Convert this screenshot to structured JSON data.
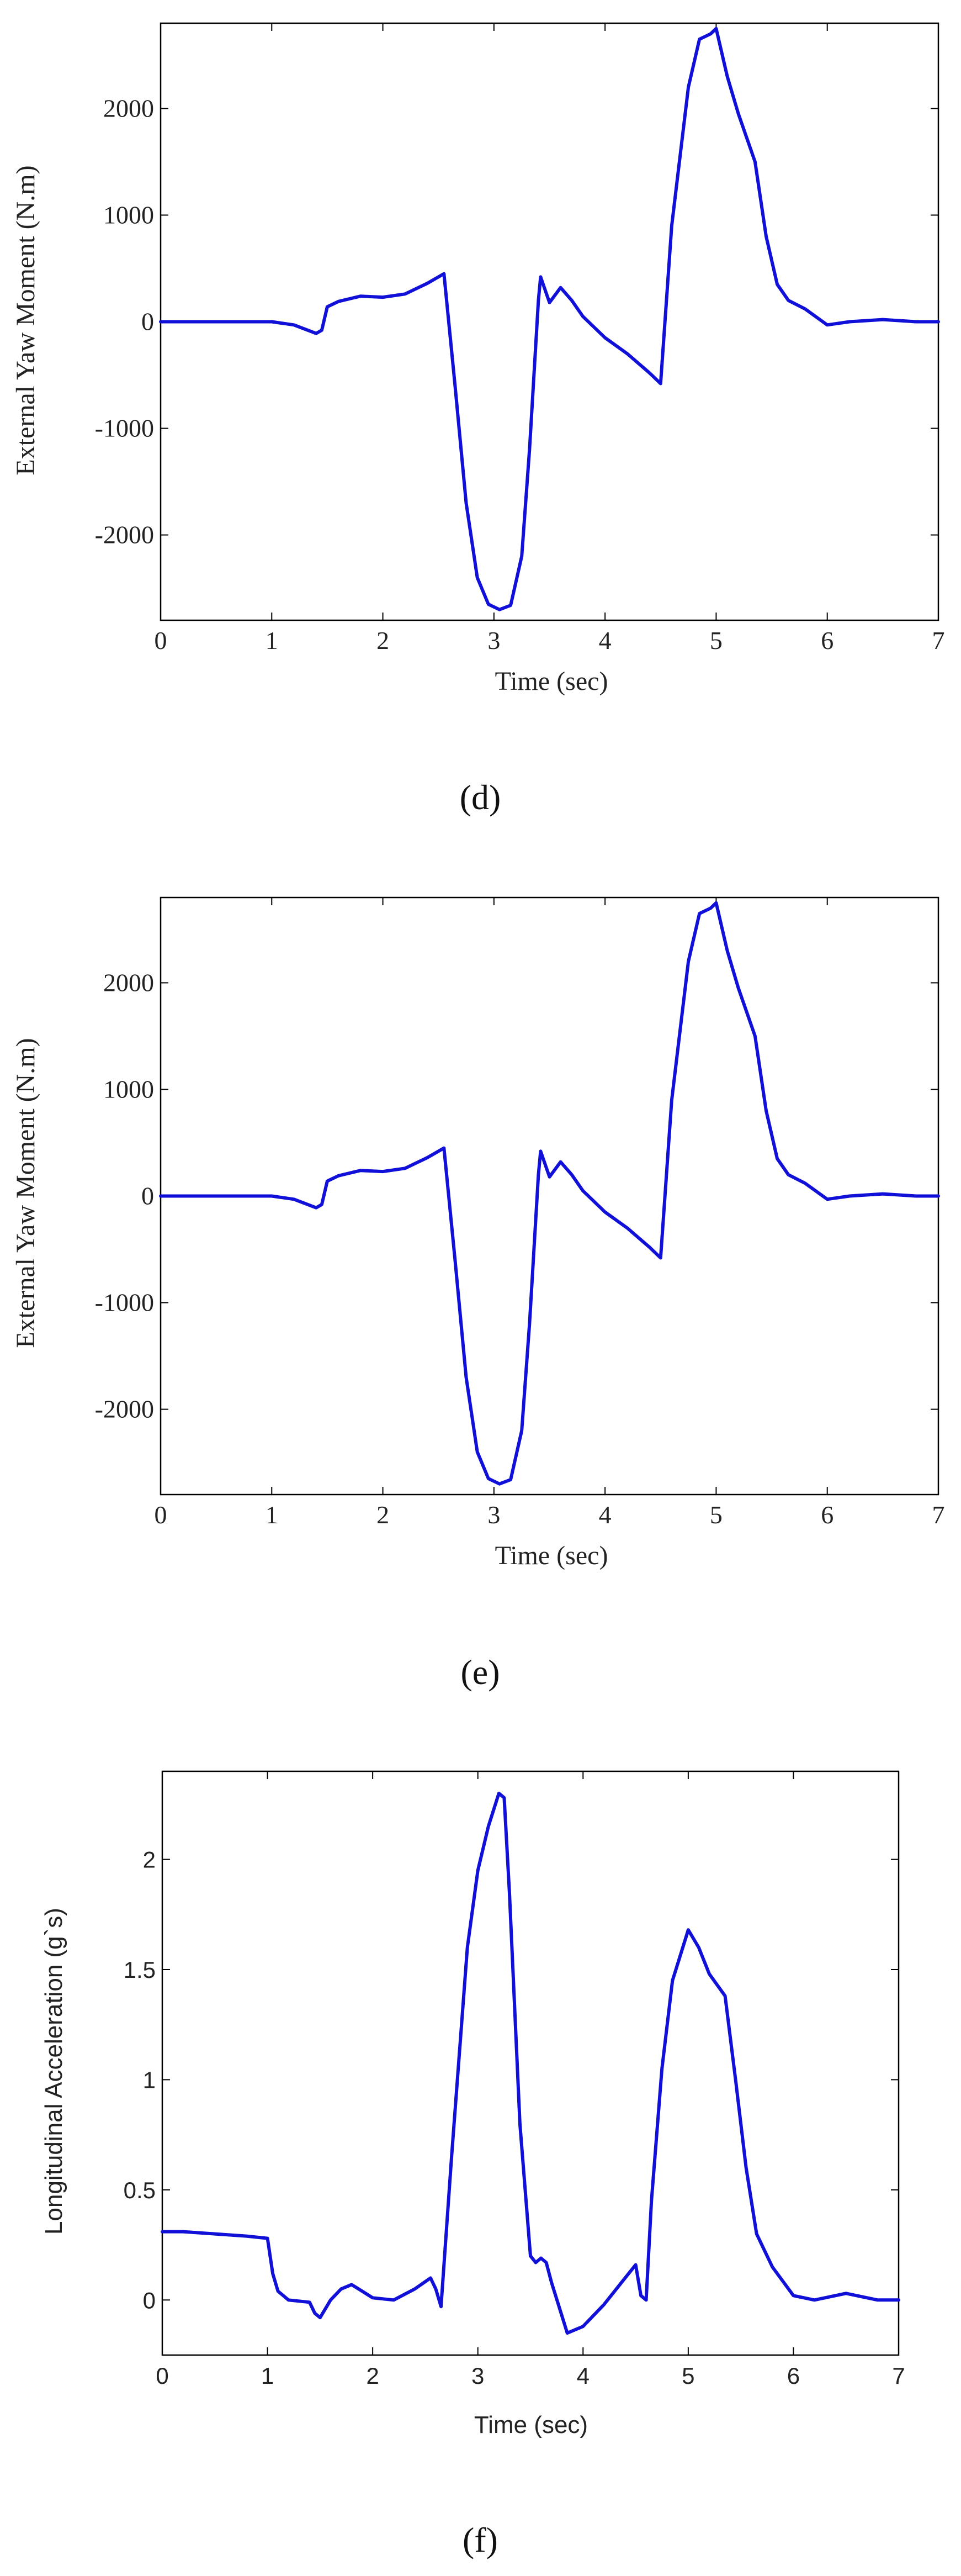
{
  "charts": [
    {
      "caption": "(d)",
      "chart_data": {
        "type": "line",
        "title": "",
        "xlabel": "Time (sec)",
        "ylabel": "External Yaw Moment (N.m)",
        "xlim": [
          0,
          7
        ],
        "ylim": [
          -2800,
          2800
        ],
        "xticks": [
          0,
          1,
          2,
          3,
          4,
          5,
          6,
          7
        ],
        "yticks": [
          -2000,
          -1000,
          0,
          1000,
          2000
        ],
        "grid": false,
        "series": [
          {
            "color": "#1010d8",
            "x": [
              0,
              1,
              1.2,
              1.4,
              1.45,
              1.5,
              1.6,
              1.8,
              2.0,
              2.2,
              2.4,
              2.55,
              2.65,
              2.75,
              2.85,
              2.95,
              3.05,
              3.15,
              3.25,
              3.32,
              3.4,
              3.42,
              3.5,
              3.6,
              3.7,
              3.8,
              4.0,
              4.2,
              4.4,
              4.5,
              4.6,
              4.75,
              4.85,
              4.95,
              5.0,
              5.1,
              5.2,
              5.35,
              5.45,
              5.55,
              5.65,
              5.8,
              6.0,
              6.2,
              6.5,
              6.8,
              7.0
            ],
            "y": [
              0,
              0,
              -30,
              -110,
              -80,
              140,
              190,
              240,
              230,
              260,
              360,
              450,
              -600,
              -1700,
              -2400,
              -2650,
              -2700,
              -2660,
              -2200,
              -1200,
              200,
              420,
              180,
              320,
              200,
              50,
              -150,
              -300,
              -480,
              -580,
              900,
              2200,
              2650,
              2700,
              2750,
              2300,
              1950,
              1500,
              800,
              350,
              200,
              120,
              -30,
              0,
              20,
              0,
              0
            ]
          }
        ]
      }
    },
    {
      "caption": "(e)",
      "chart_data": {
        "type": "line",
        "title": "",
        "xlabel": "Time (sec)",
        "ylabel": "External Yaw Moment (N.m)",
        "xlim": [
          0,
          7
        ],
        "ylim": [
          -2800,
          2800
        ],
        "xticks": [
          0,
          1,
          2,
          3,
          4,
          5,
          6,
          7
        ],
        "yticks": [
          -2000,
          -1000,
          0,
          1000,
          2000
        ],
        "grid": false,
        "series": [
          {
            "color": "#1010d8",
            "x": [
              0,
              1,
              1.2,
              1.4,
              1.45,
              1.5,
              1.6,
              1.8,
              2.0,
              2.2,
              2.4,
              2.55,
              2.65,
              2.75,
              2.85,
              2.95,
              3.05,
              3.15,
              3.25,
              3.32,
              3.4,
              3.42,
              3.5,
              3.6,
              3.7,
              3.8,
              4.0,
              4.2,
              4.4,
              4.5,
              4.6,
              4.75,
              4.85,
              4.95,
              5.0,
              5.1,
              5.2,
              5.35,
              5.45,
              5.55,
              5.65,
              5.8,
              6.0,
              6.2,
              6.5,
              6.8,
              7.0
            ],
            "y": [
              0,
              0,
              -30,
              -110,
              -80,
              140,
              190,
              240,
              230,
              260,
              360,
              450,
              -600,
              -1700,
              -2400,
              -2650,
              -2700,
              -2660,
              -2200,
              -1200,
              200,
              420,
              180,
              320,
              200,
              50,
              -150,
              -300,
              -480,
              -580,
              900,
              2200,
              2650,
              2700,
              2750,
              2300,
              1950,
              1500,
              800,
              350,
              200,
              120,
              -30,
              0,
              20,
              0,
              0
            ]
          }
        ]
      }
    },
    {
      "caption": "(f)",
      "chart_data": {
        "type": "line",
        "title": "",
        "xlabel": "Time (sec)",
        "ylabel": "Longitudinal Acceleration (g`s)",
        "xlim": [
          0,
          7
        ],
        "ylim": [
          -0.25,
          2.4
        ],
        "xticks": [
          0,
          1,
          2,
          3,
          4,
          5,
          6,
          7
        ],
        "yticks": [
          0,
          0.5,
          1,
          1.5,
          2
        ],
        "grid": false,
        "series": [
          {
            "color": "#1010d8",
            "x": [
              0,
              0.2,
              0.5,
              0.8,
              1.0,
              1.05,
              1.1,
              1.2,
              1.4,
              1.45,
              1.5,
              1.6,
              1.7,
              1.8,
              1.9,
              2.0,
              2.2,
              2.4,
              2.55,
              2.6,
              2.65,
              2.75,
              2.9,
              3.0,
              3.1,
              3.2,
              3.25,
              3.3,
              3.4,
              3.5,
              3.55,
              3.6,
              3.65,
              3.7,
              3.85,
              4.0,
              4.2,
              4.4,
              4.5,
              4.55,
              4.6,
              4.65,
              4.75,
              4.85,
              5.0,
              5.1,
              5.2,
              5.35,
              5.45,
              5.55,
              5.65,
              5.8,
              6.0,
              6.2,
              6.5,
              6.8,
              7.0
            ],
            "y": [
              0.31,
              0.31,
              0.3,
              0.29,
              0.28,
              0.12,
              0.04,
              0.0,
              -0.01,
              -0.06,
              -0.08,
              0.0,
              0.05,
              0.07,
              0.04,
              0.01,
              0.0,
              0.05,
              0.1,
              0.05,
              -0.03,
              0.65,
              1.6,
              1.95,
              2.15,
              2.3,
              2.28,
              1.85,
              0.8,
              0.2,
              0.17,
              0.19,
              0.17,
              0.08,
              -0.15,
              -0.12,
              -0.02,
              0.1,
              0.16,
              0.02,
              0.0,
              0.45,
              1.05,
              1.45,
              1.68,
              1.6,
              1.48,
              1.38,
              1.0,
              0.6,
              0.3,
              0.15,
              0.02,
              0.0,
              0.03,
              0.0,
              0.0
            ]
          }
        ]
      }
    }
  ]
}
